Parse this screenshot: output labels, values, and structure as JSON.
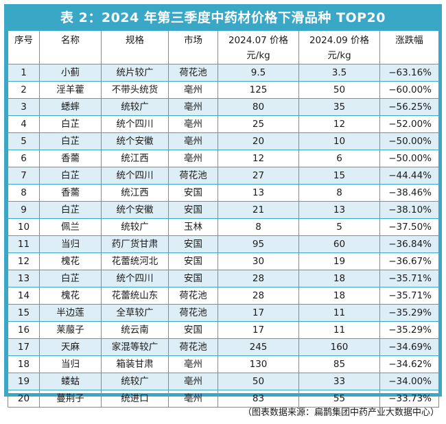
{
  "title": "表 2：2024 年第三季度中药材价格下滑品种 TOP20",
  "headers": {
    "idx": "序号",
    "name": "名称",
    "spec": "规格",
    "market": "市场",
    "p07_line1": "2024.07 价格",
    "p07_line2": "元/kg",
    "p09_line1": "2024.09 价格",
    "p09_line2": "元/kg",
    "change": "涨跌幅"
  },
  "rows": [
    {
      "idx": "1",
      "name": "小蓟",
      "spec": "统片较广",
      "market": "荷花池",
      "p07": "9.5",
      "p09": "3.5",
      "change": "−63.16%"
    },
    {
      "idx": "2",
      "name": "淫羊藿",
      "spec": "不带头统货",
      "market": "亳州",
      "p07": "125",
      "p09": "50",
      "change": "−60.00%"
    },
    {
      "idx": "3",
      "name": "蟋蟀",
      "spec": "统较广",
      "market": "亳州",
      "p07": "80",
      "p09": "35",
      "change": "−56.25%"
    },
    {
      "idx": "4",
      "name": "白芷",
      "spec": "统个四川",
      "market": "亳州",
      "p07": "25",
      "p09": "12",
      "change": "−52.00%"
    },
    {
      "idx": "5",
      "name": "白芷",
      "spec": "统个安徽",
      "market": "亳州",
      "p07": "20",
      "p09": "10",
      "change": "−50.00%"
    },
    {
      "idx": "6",
      "name": "香薷",
      "spec": "统江西",
      "market": "亳州",
      "p07": "12",
      "p09": "6",
      "change": "−50.00%"
    },
    {
      "idx": "7",
      "name": "白芷",
      "spec": "统个四川",
      "market": "荷花池",
      "p07": "27",
      "p09": "15",
      "change": "−44.44%"
    },
    {
      "idx": "8",
      "name": "香薷",
      "spec": "统江西",
      "market": "安国",
      "p07": "13",
      "p09": "8",
      "change": "−38.46%"
    },
    {
      "idx": "9",
      "name": "白芷",
      "spec": "统个安徽",
      "market": "安国",
      "p07": "21",
      "p09": "13",
      "change": "−38.10%"
    },
    {
      "idx": "10",
      "name": "佩兰",
      "spec": "统较广",
      "market": "玉林",
      "p07": "8",
      "p09": "5",
      "change": "−37.50%"
    },
    {
      "idx": "11",
      "name": "当归",
      "spec": "药厂货甘肃",
      "market": "安国",
      "p07": "95",
      "p09": "60",
      "change": "−36.84%"
    },
    {
      "idx": "12",
      "name": "槐花",
      "spec": "花蕾统河北",
      "market": "安国",
      "p07": "30",
      "p09": "19",
      "change": "−36.67%"
    },
    {
      "idx": "13",
      "name": "白芷",
      "spec": "统个四川",
      "market": "安国",
      "p07": "28",
      "p09": "18",
      "change": "−35.71%"
    },
    {
      "idx": "14",
      "name": "槐花",
      "spec": "花蕾统山东",
      "market": "荷花池",
      "p07": "28",
      "p09": "18",
      "change": "−35.71%"
    },
    {
      "idx": "15",
      "name": "半边莲",
      "spec": "全草较广",
      "market": "荷花池",
      "p07": "17",
      "p09": "11",
      "change": "−35.29%"
    },
    {
      "idx": "16",
      "name": "莱菔子",
      "spec": "统云南",
      "market": "安国",
      "p07": "17",
      "p09": "11",
      "change": "−35.29%"
    },
    {
      "idx": "17",
      "name": "天麻",
      "spec": "家混等较广",
      "market": "荷花池",
      "p07": "245",
      "p09": "160",
      "change": "−34.69%"
    },
    {
      "idx": "18",
      "name": "当归",
      "spec": "箱装甘肃",
      "market": "亳州",
      "p07": "130",
      "p09": "85",
      "change": "−34.62%"
    },
    {
      "idx": "19",
      "name": "蝼蛄",
      "spec": "统较广",
      "market": "亳州",
      "p07": "50",
      "p09": "33",
      "change": "−34.00%"
    },
    {
      "idx": "20",
      "name": "蔓荆子",
      "spec": "统进口",
      "market": "亳州",
      "p07": "83",
      "p09": "55",
      "change": "−33.73%"
    }
  ],
  "source": "（图表数据来源：扁鹊集团中药产业大数据中心）",
  "colors": {
    "frame": "#3aa7c7",
    "row_alt": "#deeef7",
    "title_text": "#ffffff"
  }
}
